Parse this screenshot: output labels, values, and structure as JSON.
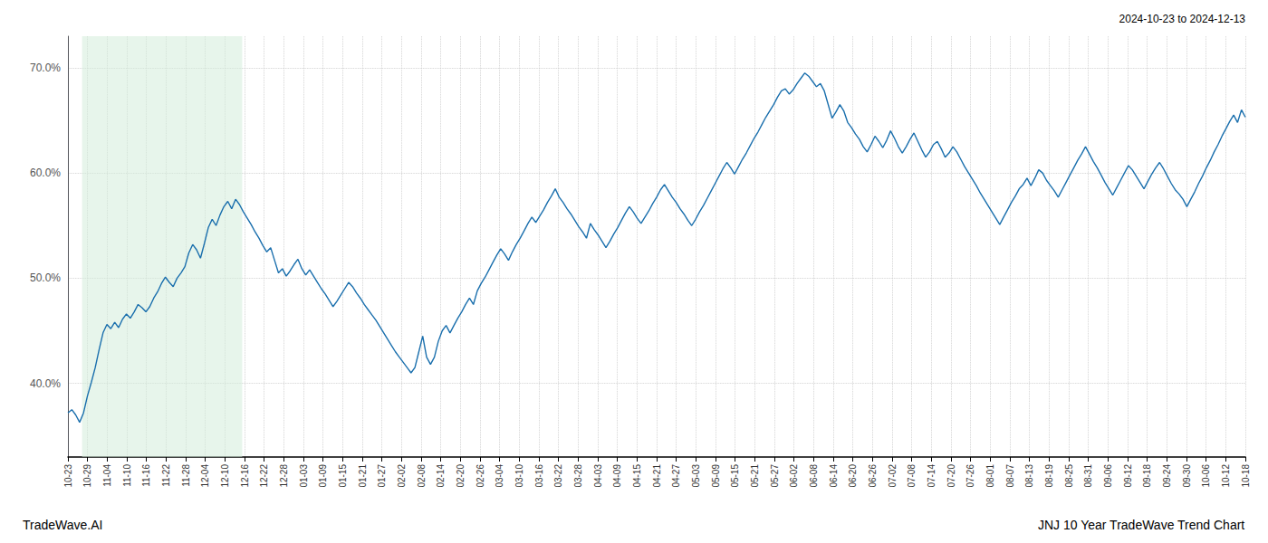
{
  "chart_data": {
    "type": "line",
    "title": "JNJ 10 Year TradeWave Trend Chart",
    "subtitle": "2024-10-23 to 2024-12-13",
    "annotations": [
      "TradeWave.AI"
    ],
    "color": "#1a6fad",
    "grid": true,
    "line_style": "solid",
    "xlim": [
      0,
      302
    ],
    "xticks": [
      {
        "value": 0,
        "label": "10-23"
      },
      {
        "value": 5.033333333333333,
        "label": "10-29"
      },
      {
        "value": 10.066666666666666,
        "label": "11-04"
      },
      {
        "value": 15.1,
        "label": "11-10"
      },
      {
        "value": 20.133333333333333,
        "label": "11-16"
      },
      {
        "value": 25.166666666666668,
        "label": "11-22"
      },
      {
        "value": 30.2,
        "label": "11-28"
      },
      {
        "value": 35.233333333333334,
        "label": "12-04"
      },
      {
        "value": 40.266666666666666,
        "label": "12-10"
      },
      {
        "value": 45.3,
        "label": "12-16"
      },
      {
        "value": 50.333333333333336,
        "label": "12-22"
      },
      {
        "value": 55.36666666666667,
        "label": "12-28"
      },
      {
        "value": 60.4,
        "label": "01-03"
      },
      {
        "value": 65.43333333333334,
        "label": "01-09"
      },
      {
        "value": 70.46666666666667,
        "label": "01-15"
      },
      {
        "value": 75.5,
        "label": "01-21"
      },
      {
        "value": 80.53333333333333,
        "label": "01-27"
      },
      {
        "value": 85.56666666666666,
        "label": "02-02"
      },
      {
        "value": 90.6,
        "label": "02-08"
      },
      {
        "value": 95.63333333333334,
        "label": "02-14"
      },
      {
        "value": 100.66666666666667,
        "label": "02-20"
      },
      {
        "value": 105.7,
        "label": "02-26"
      },
      {
        "value": 110.73333333333333,
        "label": "03-04"
      },
      {
        "value": 115.76666666666667,
        "label": "03-10"
      },
      {
        "value": 120.8,
        "label": "03-16"
      },
      {
        "value": 125.83333333333333,
        "label": "03-22"
      },
      {
        "value": 130.86666666666667,
        "label": "03-28"
      },
      {
        "value": 135.9,
        "label": "04-03"
      },
      {
        "value": 140.93333333333334,
        "label": "04-09"
      },
      {
        "value": 145.96666666666667,
        "label": "04-15"
      },
      {
        "value": 151,
        "label": "04-21"
      },
      {
        "value": 156.03333333333333,
        "label": "04-27"
      },
      {
        "value": 161.06666666666666,
        "label": "05-03"
      },
      {
        "value": 166.1,
        "label": "05-09"
      },
      {
        "value": 171.13333333333333,
        "label": "05-15"
      },
      {
        "value": 176.16666666666666,
        "label": "05-21"
      },
      {
        "value": 181.2,
        "label": "05-27"
      },
      {
        "value": 186.23333333333332,
        "label": "06-02"
      },
      {
        "value": 191.26666666666668,
        "label": "06-08"
      },
      {
        "value": 196.3,
        "label": "06-14"
      },
      {
        "value": 201.33333333333334,
        "label": "06-20"
      },
      {
        "value": 206.36666666666667,
        "label": "06-26"
      },
      {
        "value": 211.4,
        "label": "07-02"
      },
      {
        "value": 216.43333333333334,
        "label": "07-08"
      },
      {
        "value": 221.46666666666667,
        "label": "07-14"
      },
      {
        "value": 226.5,
        "label": "07-20"
      },
      {
        "value": 231.53333333333333,
        "label": "07-26"
      },
      {
        "value": 236.56666666666666,
        "label": "08-01"
      },
      {
        "value": 241.6,
        "label": "08-07"
      },
      {
        "value": 246.63333333333333,
        "label": "08-13"
      },
      {
        "value": 251.66666666666666,
        "label": "08-19"
      },
      {
        "value": 256.7,
        "label": "08-25"
      },
      {
        "value": 261.73333333333335,
        "label": "08-31"
      },
      {
        "value": 266.76666666666665,
        "label": "09-06"
      },
      {
        "value": 271.8,
        "label": "09-12"
      },
      {
        "value": 276.8333333333333,
        "label": "09-18"
      },
      {
        "value": 281.8666666666667,
        "label": "09-24"
      },
      {
        "value": 286.9,
        "label": "09-30"
      },
      {
        "value": 291.93333333333334,
        "label": "10-06"
      },
      {
        "value": 296.96666666666664,
        "label": "10-12"
      },
      {
        "value": 302,
        "label": "10-18"
      }
    ],
    "ylim": [
      33,
      73
    ],
    "yticks": [
      {
        "value": 40.0,
        "label": "40.0%"
      },
      {
        "value": 50.0,
        "label": "50.0%"
      },
      {
        "value": 60.0,
        "label": "60.0%"
      },
      {
        "value": 70.0,
        "label": "70.0%"
      }
    ],
    "shade": {
      "x": [
        3.624,
        44.696
      ],
      "color": "#d4edda"
    },
    "values": [
      37.2,
      37.5,
      37.0,
      36.3,
      37.2,
      38.8,
      40.1,
      41.5,
      43.2,
      44.8,
      45.6,
      45.2,
      45.8,
      45.3,
      46.1,
      46.6,
      46.2,
      46.8,
      47.5,
      47.2,
      46.8,
      47.3,
      48.1,
      48.7,
      49.5,
      50.1,
      49.6,
      49.2,
      50.0,
      50.5,
      51.1,
      52.4,
      53.2,
      52.7,
      51.9,
      53.3,
      54.8,
      55.6,
      55.0,
      56.0,
      56.8,
      57.3,
      56.6,
      57.5,
      57.0,
      56.3,
      55.7,
      55.1,
      54.4,
      53.8,
      53.1,
      52.5,
      52.9,
      51.7,
      50.5,
      50.9,
      50.2,
      50.7,
      51.3,
      51.8,
      50.9,
      50.3,
      50.8,
      50.2,
      49.6,
      49.0,
      48.5,
      47.9,
      47.3,
      47.8,
      48.4,
      49.0,
      49.6,
      49.2,
      48.6,
      48.1,
      47.5,
      47.0,
      46.5,
      46.0,
      45.4,
      44.8,
      44.2,
      43.6,
      43.0,
      42.5,
      42.0,
      41.5,
      41.0,
      41.5,
      43.0,
      44.5,
      42.5,
      41.8,
      42.5,
      44.0,
      45.0,
      45.5,
      44.8,
      45.5,
      46.2,
      46.8,
      47.5,
      48.1,
      47.5,
      48.8,
      49.5,
      50.1,
      50.8,
      51.5,
      52.2,
      52.8,
      52.3,
      51.7,
      52.5,
      53.2,
      53.8,
      54.5,
      55.2,
      55.8,
      55.3,
      55.9,
      56.5,
      57.2,
      57.8,
      58.5,
      57.7,
      57.2,
      56.6,
      56.1,
      55.5,
      54.9,
      54.4,
      53.8,
      55.2,
      54.6,
      54.1,
      53.5,
      52.9,
      53.5,
      54.2,
      54.8,
      55.5,
      56.2,
      56.8,
      56.3,
      55.7,
      55.2,
      55.8,
      56.4,
      57.1,
      57.7,
      58.4,
      58.9,
      58.3,
      57.7,
      57.2,
      56.6,
      56.1,
      55.5,
      55.0,
      55.6,
      56.3,
      56.9,
      57.6,
      58.3,
      59.0,
      59.7,
      60.4,
      61.0,
      60.5,
      59.9,
      60.6,
      61.3,
      61.9,
      62.6,
      63.3,
      63.9,
      64.6,
      65.3,
      65.9,
      66.5,
      67.2,
      67.8,
      68.0,
      67.5,
      67.9,
      68.5,
      69.0,
      69.5,
      69.2,
      68.7,
      68.2,
      68.5,
      67.8,
      66.5,
      65.2,
      65.8,
      66.5,
      65.9,
      64.8,
      64.3,
      63.7,
      63.2,
      62.5,
      62.0,
      62.7,
      63.5,
      63.0,
      62.4,
      63.1,
      64.0,
      63.3,
      62.5,
      61.9,
      62.5,
      63.2,
      63.8,
      63.0,
      62.2,
      61.5,
      62.0,
      62.7,
      63.0,
      62.3,
      61.5,
      61.9,
      62.5,
      62.0,
      61.3,
      60.6,
      60.0,
      59.4,
      58.8,
      58.1,
      57.5,
      56.9,
      56.3,
      55.7,
      55.1,
      55.8,
      56.5,
      57.2,
      57.8,
      58.5,
      58.9,
      59.5,
      58.8,
      59.5,
      60.3,
      60.0,
      59.3,
      58.8,
      58.3,
      57.7,
      58.4,
      59.1,
      59.8,
      60.5,
      61.2,
      61.8,
      62.5,
      61.8,
      61.1,
      60.5,
      59.8,
      59.1,
      58.5,
      57.9,
      58.6,
      59.3,
      60.0,
      60.7,
      60.3,
      59.7,
      59.1,
      58.5,
      59.2,
      59.9,
      60.5,
      61.0,
      60.4,
      59.7,
      59.0,
      58.4,
      58.0,
      57.5,
      56.8,
      57.5,
      58.2,
      59.0,
      59.7,
      60.5,
      61.2,
      62.0,
      62.7,
      63.5,
      64.2,
      64.9,
      65.5,
      64.8,
      66.0,
      65.3
    ]
  }
}
